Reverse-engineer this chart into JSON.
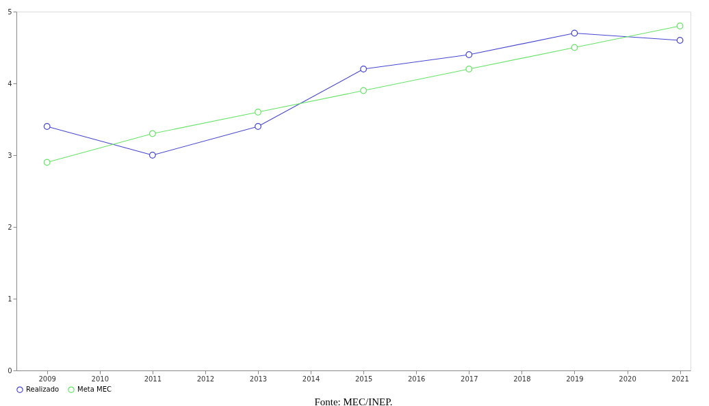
{
  "chart_data": {
    "type": "line",
    "x": [
      2009,
      2011,
      2013,
      2015,
      2017,
      2019,
      2021
    ],
    "series": [
      {
        "name": "Realizado",
        "color": "#4646d2",
        "values": [
          3.4,
          3.0,
          3.4,
          4.2,
          4.4,
          4.7,
          4.6
        ]
      },
      {
        "name": "Meta MEC",
        "color": "#66e466",
        "values": [
          2.9,
          3.3,
          3.6,
          3.9,
          4.2,
          4.5,
          4.8
        ]
      }
    ],
    "xlim": [
      2008.42,
      2021.2
    ],
    "xticks": [
      2009,
      2010,
      2011,
      2012,
      2013,
      2014,
      2015,
      2016,
      2017,
      2018,
      2019,
      2020,
      2021
    ],
    "ylim": [
      0,
      5
    ],
    "yticks": [
      0,
      1,
      2,
      3,
      4,
      5
    ],
    "grid": false,
    "legend": "bottom",
    "marker": "circle",
    "annotations": [
      "Fonte: MEC/INEP."
    ]
  }
}
